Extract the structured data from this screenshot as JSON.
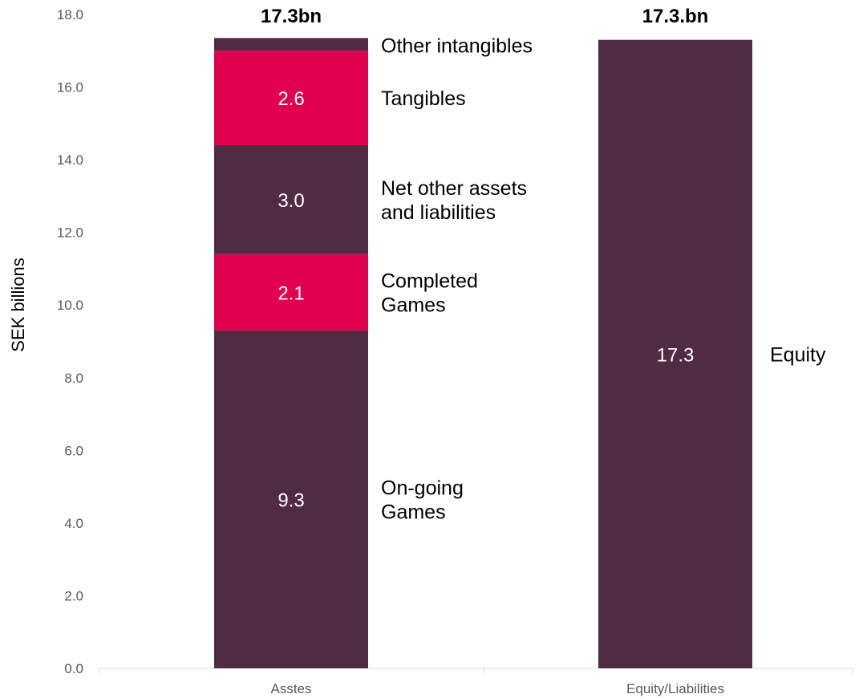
{
  "chart_data": {
    "type": "bar",
    "stacked": true,
    "ylabel": "SEK billions",
    "xlabel": "",
    "ylim": [
      0,
      18
    ],
    "yticks": [
      "0.0",
      "2.0",
      "4.0",
      "6.0",
      "8.0",
      "10.0",
      "12.0",
      "14.0",
      "16.0",
      "18.0"
    ],
    "categories": [
      "Asstes",
      "Equity/Liabilities"
    ],
    "totals": [
      "17.3bn",
      "17.3.bn"
    ],
    "colors": {
      "dark": "#512a44",
      "accent": "#e0004d"
    },
    "bars": [
      {
        "category": "Asstes",
        "segments": [
          {
            "name": "On-going Games",
            "value": 9.3,
            "value_label": "9.3",
            "annotation": [
              "On-going",
              "Games"
            ],
            "color": "#512a44"
          },
          {
            "name": "Completed Games",
            "value": 2.1,
            "value_label": "2.1",
            "annotation": [
              "Completed",
              "Games"
            ],
            "color": "#e0004d"
          },
          {
            "name": "Net other assets and liabilities",
            "value": 3.0,
            "value_label": "3.0",
            "annotation": [
              "Net other assets",
              "and liabilities"
            ],
            "color": "#512a44"
          },
          {
            "name": "Tangibles",
            "value": 2.6,
            "value_label": "2.6",
            "annotation": [
              "Tangibles"
            ],
            "color": "#e0004d"
          },
          {
            "name": "Other intangibles",
            "value": 0.35,
            "value_label": "",
            "annotation": [
              "Other intangibles"
            ],
            "color": "#512a44"
          }
        ]
      },
      {
        "category": "Equity/Liabilities",
        "segments": [
          {
            "name": "Equity",
            "value": 17.3,
            "value_label": "17.3",
            "annotation": [
              "Equity"
            ],
            "color": "#512a44"
          }
        ]
      }
    ]
  }
}
